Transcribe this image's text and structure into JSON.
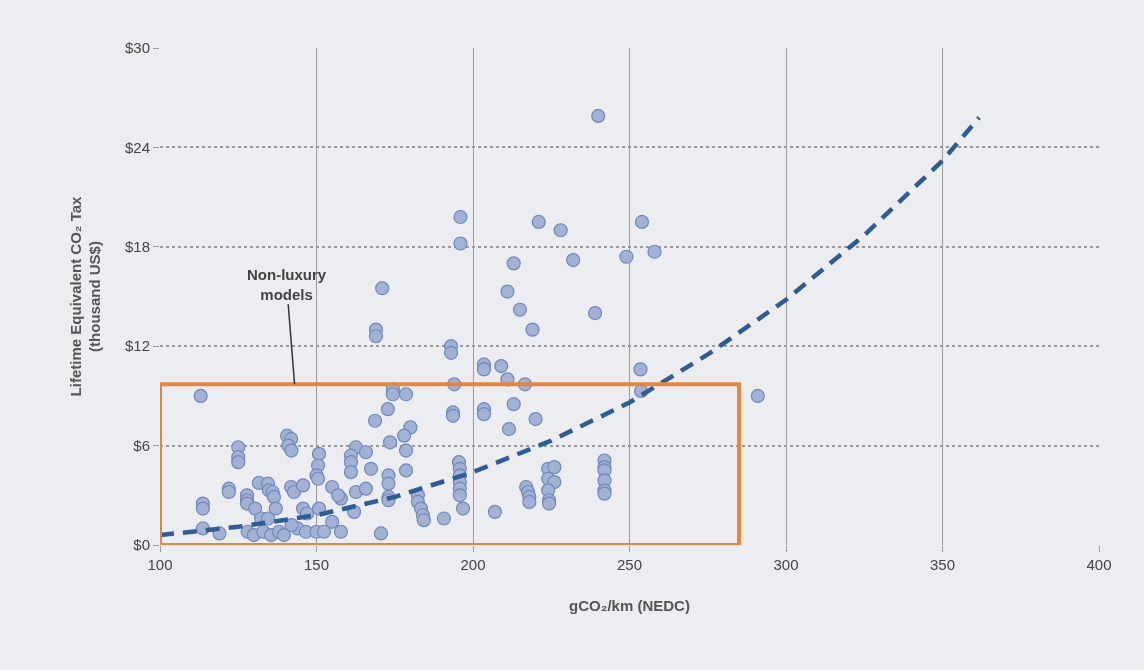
{
  "chart_data": {
    "type": "scatter",
    "xlabel": "gCO₂/km (NEDC)",
    "ylabel": "Lifetime Equivalent CO₂ Tax\n(thousand US$)",
    "xlim": [
      100,
      400
    ],
    "xticks": [
      100,
      150,
      200,
      250,
      300,
      350,
      400
    ],
    "ylim": [
      0,
      30
    ],
    "yticks": [
      {
        "value": 0,
        "label": "$0"
      },
      {
        "value": 6,
        "label": "$6"
      },
      {
        "value": 12,
        "label": "$12"
      },
      {
        "value": 18,
        "label": "$18"
      },
      {
        "value": 24,
        "label": "$24"
      },
      {
        "value": 30,
        "label": "$30"
      }
    ],
    "grid": true,
    "series": [
      {
        "marker": "circle",
        "color": "#a3b1d4",
        "x": [
          240,
          196,
          196,
          221,
          228,
          254,
          258,
          249,
          232,
          213,
          171,
          211,
          215,
          239,
          219,
          169,
          169,
          193,
          193,
          203.5,
          203.5,
          209,
          211,
          216.6,
          253.5,
          253.7,
          291,
          194,
          174.4,
          174.4,
          178.6,
          172.8,
          168.7,
          193.6,
          193.6,
          203.5,
          203.5,
          213,
          211.5,
          220,
          180,
          178,
          173.5,
          178.6,
          162.6,
          161,
          161,
          161,
          165.8,
          167.4,
          178.6,
          173,
          173,
          173,
          173,
          195.5,
          195.8,
          195.8,
          195.8,
          195.8,
          195.8,
          196.8,
          182.4,
          182.4,
          183.4,
          184,
          184.3,
          190.7,
          207,
          170.6,
          162.6,
          162,
          165.8,
          157.8,
          113,
          125,
          125,
          125,
          140.6,
          141.9,
          141,
          142,
          122,
          122,
          113.7,
          113.7,
          113.7,
          119,
          127.8,
          127.8,
          127.8,
          130.4,
          131.6,
          134.5,
          134.8,
          136,
          136.4,
          137,
          141.9,
          142.8,
          145.7,
          145.7,
          147,
          150.8,
          150.5,
          150,
          150.5,
          150.8,
          155,
          156.9,
          128,
          130,
          133,
          135.5,
          138,
          139.6,
          144,
          146.6,
          150,
          152.4,
          155,
          157.8,
          132.3,
          134.5,
          142,
          217,
          217.6,
          218,
          218,
          224,
          226,
          224,
          226,
          224,
          224.3,
          224.3,
          242,
          242,
          242,
          242,
          242,
          242
        ],
        "values": [
          25.9,
          19.8,
          18.2,
          19.5,
          19.0,
          19.5,
          17.7,
          17.4,
          17.2,
          17.0,
          15.5,
          15.3,
          14.2,
          14.0,
          13.0,
          13.0,
          12.6,
          12.0,
          11.6,
          10.9,
          10.6,
          10.8,
          10.0,
          9.7,
          10.6,
          9.3,
          9.0,
          9.7,
          9.4,
          9.1,
          9.1,
          8.2,
          7.5,
          8.0,
          7.8,
          8.2,
          7.9,
          8.5,
          7.0,
          7.6,
          7.1,
          6.6,
          6.2,
          5.7,
          5.9,
          5.4,
          5.0,
          4.4,
          5.6,
          4.6,
          4.5,
          4.2,
          3.7,
          2.9,
          2.7,
          5.0,
          4.6,
          4.2,
          3.8,
          3.4,
          3.0,
          2.2,
          3.0,
          2.6,
          2.2,
          1.8,
          1.5,
          1.6,
          2.0,
          0.7,
          3.2,
          2.0,
          3.4,
          2.8,
          9.0,
          5.9,
          5.3,
          5.0,
          6.6,
          6.4,
          6.0,
          5.7,
          3.4,
          3.2,
          2.5,
          2.2,
          1.0,
          0.7,
          3.0,
          2.7,
          2.5,
          2.2,
          3.75,
          3.7,
          3.3,
          3.2,
          2.9,
          2.2,
          3.5,
          3.2,
          3.6,
          2.2,
          1.9,
          5.5,
          4.8,
          4.2,
          4.0,
          2.2,
          3.5,
          3.0,
          0.8,
          0.6,
          0.8,
          0.6,
          0.8,
          0.6,
          1.0,
          0.8,
          0.8,
          0.8,
          1.4,
          0.8,
          1.6,
          1.6,
          1.2,
          3.5,
          3.2,
          2.9,
          2.6,
          4.6,
          4.7,
          4.0,
          3.8,
          3.3,
          2.7,
          2.5,
          5.1,
          4.7,
          4.5,
          3.9,
          3.3,
          3.1
        ]
      },
      {
        "type": "line",
        "line_style": "dashed",
        "color": "#2e5c94",
        "x": [
          100,
          125,
          150,
          175,
          200,
          225,
          250,
          275,
          300,
          325,
          350,
          361.7
        ],
        "values": [
          0.6,
          1.1,
          1.8,
          2.9,
          4.4,
          6.3,
          8.6,
          11.5,
          14.8,
          18.7,
          23.2,
          25.8
        ]
      },
      {
        "type": "line",
        "line_style": "solid",
        "color": "#e8853d",
        "x": [
          100,
          100,
          285,
          285
        ],
        "values": [
          0,
          9.7,
          9.7,
          0
        ]
      },
      {
        "type": "line",
        "line_style": "solid",
        "color": "#e8853d",
        "x": [
          100,
          285
        ],
        "values": [
          0,
          0
        ]
      }
    ],
    "annotations": [
      {
        "text": "Non-luxury\nmodels",
        "x": 143,
        "y": 9.7
      }
    ]
  }
}
